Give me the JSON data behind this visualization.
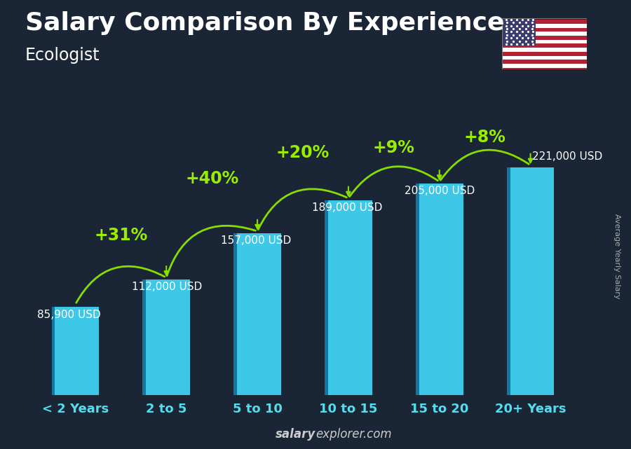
{
  "title": "Salary Comparison By Experience",
  "subtitle": "Ecologist",
  "ylabel": "Average Yearly Salary",
  "footer_bold": "salary",
  "footer_normal": "explorer.com",
  "categories": [
    "< 2 Years",
    "2 to 5",
    "5 to 10",
    "10 to 15",
    "15 to 20",
    "20+ Years"
  ],
  "values": [
    85900,
    112000,
    157000,
    189000,
    205000,
    221000
  ],
  "labels": [
    "85,900 USD",
    "112,000 USD",
    "157,000 USD",
    "189,000 USD",
    "205,000 USD",
    "221,000 USD"
  ],
  "pct_labels": [
    "+31%",
    "+40%",
    "+20%",
    "+9%",
    "+8%"
  ],
  "bar_color_light": "#3ec8e8",
  "bar_color_dark": "#1a90b0",
  "bar_color_side": "#1575a0",
  "bg_color": "#1a2535",
  "title_color": "#ffffff",
  "subtitle_color": "#ffffff",
  "label_color": "#ffffff",
  "pct_color": "#99ee00",
  "arrow_color": "#88dd00",
  "cat_color": "#55ddee",
  "footer_color": "#cccccc",
  "ylabel_color": "#aaaaaa",
  "title_fontsize": 26,
  "subtitle_fontsize": 17,
  "cat_fontsize": 13,
  "label_fontsize": 11,
  "pct_fontsize": 17,
  "ylabel_fontsize": 8,
  "footer_fontsize": 12,
  "ylim": [
    0,
    270000
  ],
  "bar_width": 0.52
}
